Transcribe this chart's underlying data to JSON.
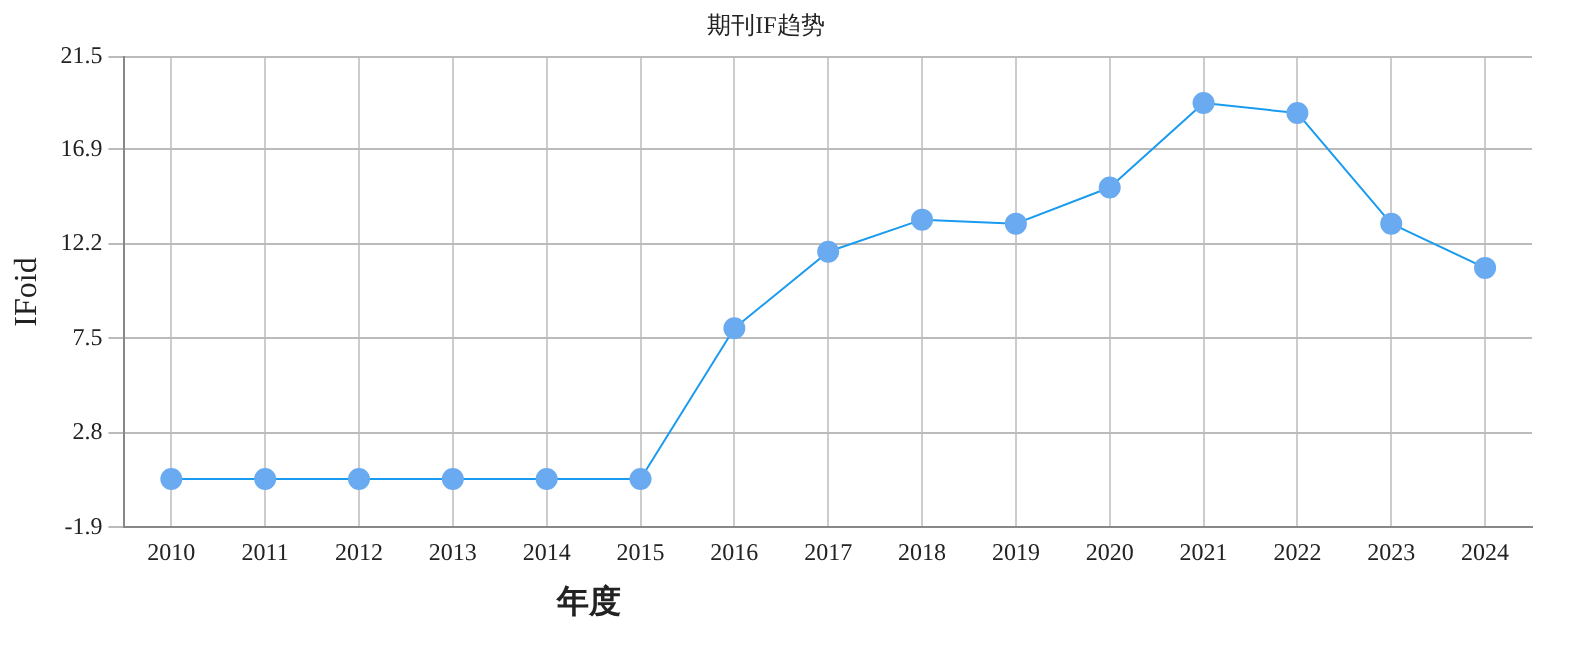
{
  "chart_data": {
    "type": "line",
    "title": "期刊IF趋势",
    "xlabel": "年度",
    "ylabel": "IFoid",
    "categories": [
      "2010",
      "2011",
      "2012",
      "2013",
      "2014",
      "2015",
      "2016",
      "2017",
      "2018",
      "2019",
      "2020",
      "2021",
      "2022",
      "2023",
      "2024"
    ],
    "series": [
      {
        "color": "#1a9bef",
        "values": [
          0.5,
          0.5,
          0.5,
          0.5,
          0.5,
          0.5,
          8.0,
          11.8,
          13.4,
          13.2,
          15.0,
          19.2,
          18.7,
          13.2,
          11.0
        ]
      }
    ],
    "ylim": [
      -1.9,
      21.5
    ],
    "yticks": [
      -1.9,
      2.8,
      7.5,
      12.2,
      16.9,
      21.5
    ],
    "grid": true,
    "legend": false,
    "marker": "circle",
    "line_style": "solid"
  }
}
